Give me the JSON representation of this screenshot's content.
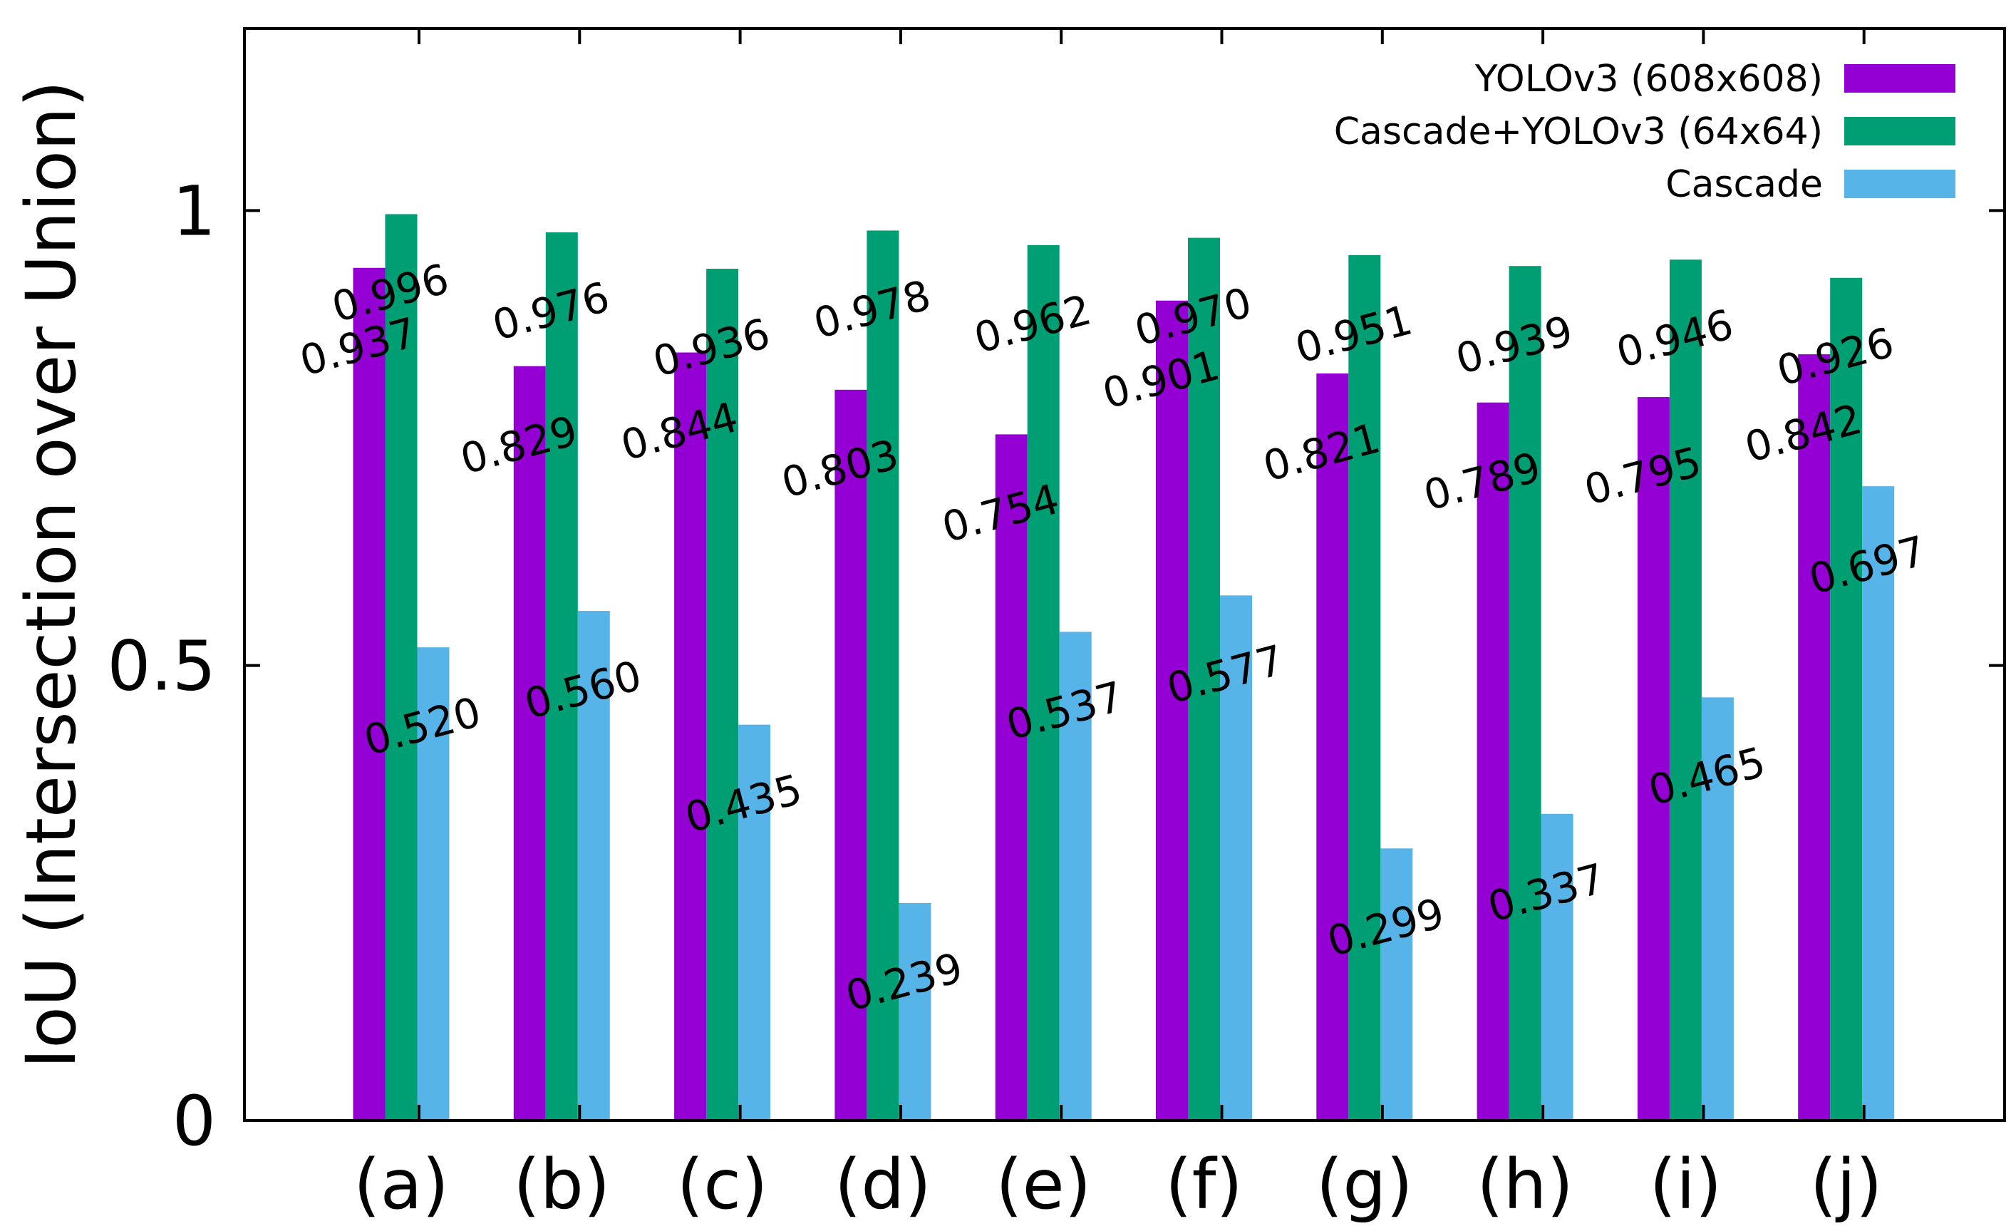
{
  "chart_data": {
    "type": "bar",
    "title": "",
    "xlabel": "",
    "ylabel": "IoU (Intersection over Union)",
    "ylim": [
      0,
      1.2
    ],
    "yticks": [
      0,
      0.5,
      1
    ],
    "ytick_labels": [
      "0",
      "0.5",
      "1"
    ],
    "grid": false,
    "legend_position": "top-right",
    "categories": [
      "(a)",
      "(b)",
      "(c)",
      "(d)",
      "(e)",
      "(f)",
      "(g)",
      "(h)",
      "(i)",
      "(j)"
    ],
    "series": [
      {
        "name": "YOLOv3 (608x608)",
        "color": "#9400d3",
        "values": [
          0.937,
          0.829,
          0.844,
          0.803,
          0.754,
          0.901,
          0.821,
          0.789,
          0.795,
          0.842
        ],
        "labels": [
          "0.937",
          "0.829",
          "0.844",
          "0.803",
          "0.754",
          "0.901",
          "0.821",
          "0.789",
          "0.795",
          "0.842"
        ]
      },
      {
        "name": "Cascade+YOLOv3 (64x64)",
        "color": "#009e73",
        "values": [
          0.996,
          0.976,
          0.936,
          0.978,
          0.962,
          0.97,
          0.951,
          0.939,
          0.946,
          0.926
        ],
        "labels": [
          "0.996",
          "0.976",
          "0.936",
          "0.978",
          "0.962",
          "0.970",
          "0.951",
          "0.939",
          "0.946",
          "0.926"
        ]
      },
      {
        "name": "Cascade",
        "color": "#56b4e9",
        "values": [
          0.52,
          0.56,
          0.435,
          0.239,
          0.537,
          0.577,
          0.299,
          0.337,
          0.465,
          0.697
        ],
        "labels": [
          "0.520",
          "0.560",
          "0.435",
          "0.239",
          "0.537",
          "0.577",
          "0.299",
          "0.337",
          "0.465",
          "0.697"
        ]
      }
    ]
  }
}
